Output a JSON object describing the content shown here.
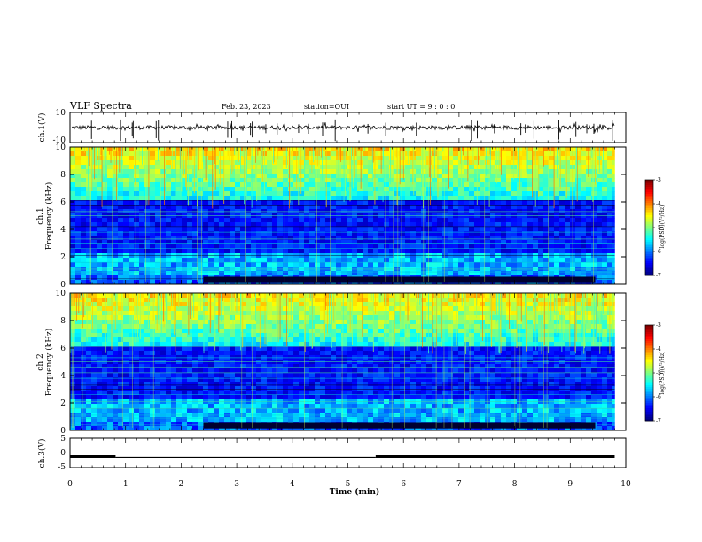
{
  "header": {
    "title": "VLF Spectra",
    "date": "Feb. 23, 2023",
    "station": "station=OUI",
    "start_ut": "start  UT =   9 : 0  : 0"
  },
  "chart_data": [
    {
      "type": "line",
      "id": "ch1-waveform",
      "ylabel": "ch.1(V)",
      "ylim": [
        -10,
        10
      ],
      "yticks": [
        "10",
        "-10"
      ],
      "baseline": 0,
      "xlim": [
        0,
        9.8
      ],
      "x_unit": "min"
    },
    {
      "type": "heatmap",
      "id": "ch1-spectrogram",
      "ylabel_top": "ch.1",
      "ylabel": "Frequency (kHz)",
      "yticks": [
        0,
        2,
        4,
        6,
        8,
        10
      ],
      "ylim": [
        0,
        10
      ],
      "xlim": [
        0,
        9.8
      ],
      "colorbar": {
        "label": "log(PSD)(V²/Hz)",
        "ticks": [
          -3,
          -4,
          -5,
          -6,
          -7
        ],
        "range": [
          -7,
          -3
        ],
        "colormap": "jet"
      },
      "description_bands_khz": {
        "dense_spherics_above": 6.2,
        "quiet_band": [
          2.2,
          6.2
        ],
        "enhanced_band": [
          0.8,
          2.2
        ]
      }
    },
    {
      "type": "heatmap",
      "id": "ch2-spectrogram",
      "ylabel_top": "ch.2",
      "ylabel": "Frequency (kHz)",
      "yticks": [
        0,
        2,
        4,
        6,
        8,
        10
      ],
      "ylim": [
        0,
        10
      ],
      "xlim": [
        0,
        9.8
      ],
      "colorbar": {
        "label": "log(PSD)(V²/Hz)",
        "ticks": [
          -3,
          -4,
          -5,
          -6,
          -7
        ],
        "range": [
          -7,
          -3
        ],
        "colormap": "jet"
      }
    },
    {
      "type": "line",
      "id": "ch3-signal",
      "ylabel": "ch.3(V)",
      "ylim": [
        -5,
        5
      ],
      "yticks": [
        "5",
        "0",
        "-5"
      ],
      "segments": [
        {
          "x": [
            0,
            0.82
          ],
          "y": -1.2
        },
        {
          "x": [
            0.82,
            5.5
          ],
          "y": -1.5
        },
        {
          "x": [
            5.5,
            9.8
          ],
          "y": -1.2
        }
      ]
    }
  ],
  "xaxis": {
    "label": "Time (min)",
    "ticks": [
      0,
      1,
      2,
      3,
      4,
      5,
      6,
      7,
      8,
      9,
      10
    ],
    "range": [
      0,
      10
    ]
  },
  "colors": {
    "axis": "#000000",
    "trace": "#000000",
    "background": "#ffffff"
  }
}
